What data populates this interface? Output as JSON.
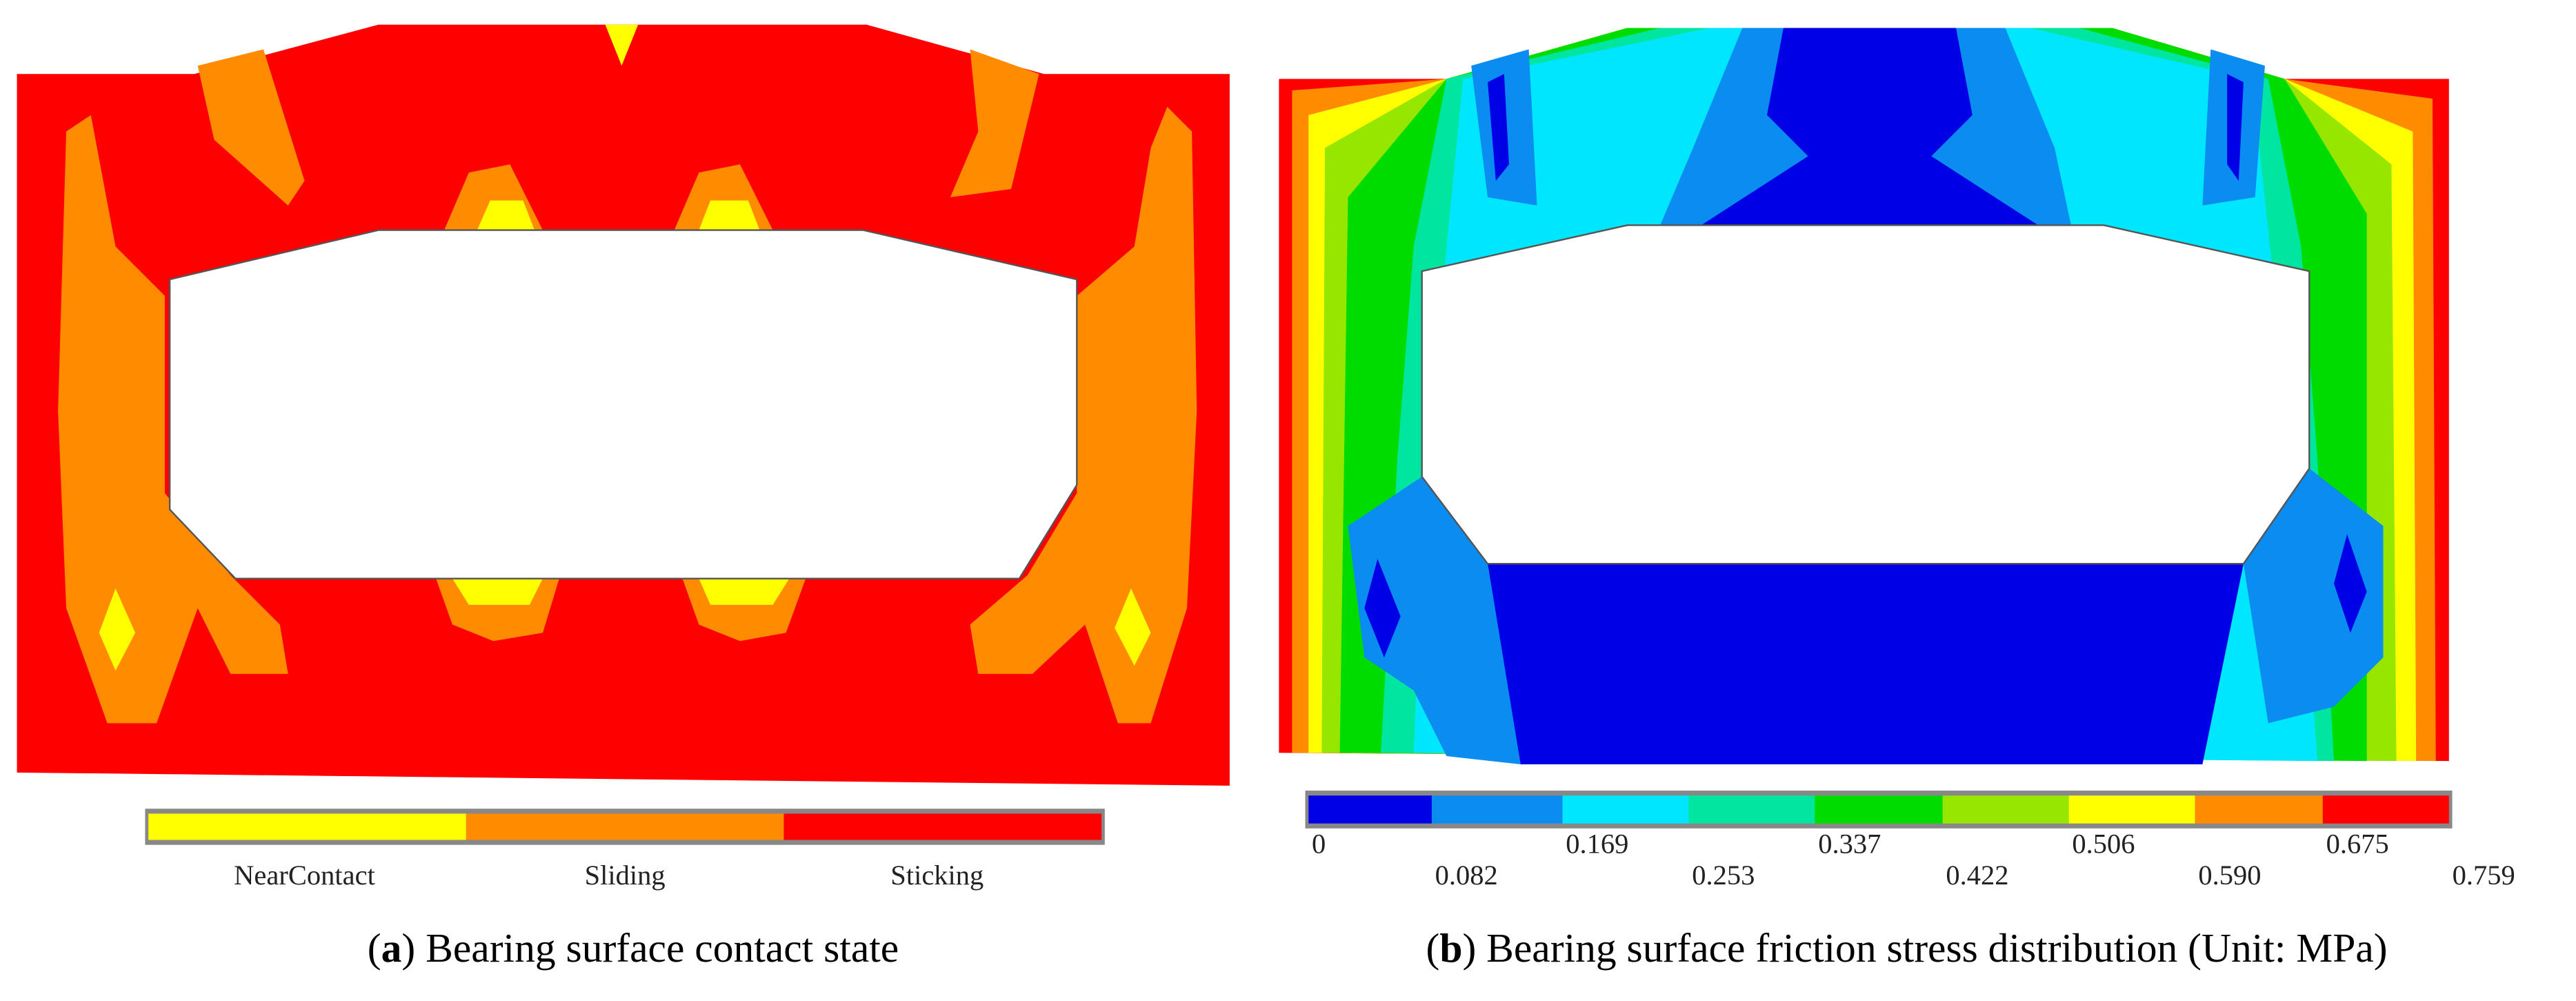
{
  "panels": [
    {
      "caption_parts": [
        "(",
        "a",
        ") Bearing surface contact state"
      ],
      "legend": [
        {
          "name": "NearContact",
          "color": "#ffff00"
        },
        {
          "name": "Sliding",
          "color": "#ff8c00"
        },
        {
          "name": "Sticking",
          "color": "#ff0000"
        }
      ]
    },
    {
      "caption_parts": [
        "(",
        "b",
        ") Bearing surface friction stress distribution (Unit: MPa)"
      ],
      "colorbar": {
        "colors": [
          "#0000e6",
          "#0a8cf0",
          "#00e6ff",
          "#00e6a0",
          "#00dc00",
          "#96e600",
          "#ffff00",
          "#ff8c00",
          "#ff0000"
        ],
        "ticks": [
          0,
          0.082,
          0.169,
          0.253,
          0.337,
          0.422,
          0.506,
          {
            "value": 0.59,
            "label": "0.590"
          },
          0.675,
          0.759
        ]
      }
    }
  ]
}
